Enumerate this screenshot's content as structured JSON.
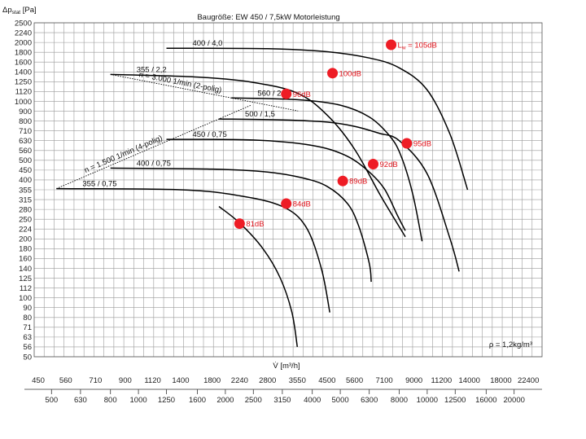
{
  "chart_data": {
    "type": "line",
    "title": "Baugröße: EW 450 / 7,5kW Motorleistung",
    "ylabel": "Δp",
    "ylabel_sub": "stat",
    "ylabel_unit": " [Pa]",
    "xlabel": "V̇ [m³/h]",
    "density_note": "ρ = 1,2kg/m³",
    "y_ticks": [
      "2500",
      "2240",
      "2000",
      "1800",
      "1600",
      "1400",
      "1250",
      "1120",
      "1000",
      "900",
      "800",
      "710",
      "630",
      "560",
      "500",
      "450",
      "400",
      "355",
      "315",
      "280",
      "250",
      "224",
      "200",
      "180",
      "160",
      "140",
      "125",
      "112",
      "100",
      "90",
      "80",
      "71",
      "63",
      "56",
      "50"
    ],
    "x_scale_top": [
      "450",
      "560",
      "710",
      "900",
      "1120",
      "1400",
      "1800",
      "2240",
      "2800",
      "3550",
      "4500",
      "5600",
      "7100",
      "9000",
      "11200",
      "14000",
      "18000",
      "22400"
    ],
    "x_scale_bottom": [
      "500",
      "630",
      "800",
      "1000",
      "1250",
      "1600",
      "2000",
      "2500",
      "3150",
      "4000",
      "5000",
      "6300",
      "8000",
      "10000",
      "12500",
      "16000",
      "20000"
    ],
    "speed_lines": [
      {
        "label": "n = 3.000 1/min (2-polig)"
      },
      {
        "label": "n = 1.500 1/min (4-polig)"
      }
    ],
    "series": [
      {
        "name": "400 / 4,0",
        "x": [
          1250,
          2800,
          4500,
          6300,
          8000,
          10000,
          12000,
          13800
        ],
        "y": [
          1880,
          1870,
          1810,
          1680,
          1480,
          1140,
          680,
          355
        ]
      },
      {
        "name": "355 / 2,2",
        "x": [
          800,
          1600,
          2500,
          3550,
          4500,
          5600,
          6900,
          8400
        ],
        "y": [
          1360,
          1320,
          1240,
          1100,
          860,
          570,
          330,
          205
        ]
      },
      {
        "name": "560 / 2,2",
        "x": [
          2100,
          3550,
          5000,
          6300,
          7400,
          8100,
          8900,
          9600
        ],
        "y": [
          1040,
          1020,
          960,
          840,
          670,
          530,
          340,
          195
        ]
      },
      {
        "name": "500 / 1,5",
        "x": [
          1900,
          3150,
          4500,
          5600,
          6800,
          8000,
          10000,
          12000,
          12900
        ],
        "y": [
          820,
          810,
          790,
          750,
          690,
          630,
          430,
          200,
          135
        ]
      },
      {
        "name": "450 / 0,75",
        "x": [
          1250,
          2500,
          4000,
          5200,
          6200,
          7100,
          7900,
          8400
        ],
        "y": [
          640,
          635,
          595,
          530,
          450,
          360,
          260,
          220
        ]
      },
      {
        "name": "400 / 0,75",
        "x": [
          800,
          1800,
          2800,
          3700,
          4500,
          5300,
          5800,
          6300,
          6400
        ],
        "y": [
          460,
          455,
          440,
          410,
          370,
          300,
          230,
          150,
          120
        ]
      },
      {
        "name": "355 / 0,75",
        "x": [
          520,
          1400,
          2240,
          3150,
          3800,
          4300,
          4600
        ],
        "y": [
          360,
          355,
          330,
          290,
          230,
          140,
          85
        ]
      },
      {
        "name": "81dB curve",
        "x": [
          1900,
          2240,
          2700,
          3100,
          3400,
          3550
        ],
        "y": [
          290,
          240,
          180,
          125,
          85,
          56
        ]
      }
    ],
    "operating_points": [
      {
        "label": "L",
        "sub": "w",
        "value_text": " = 105dB",
        "x": 7500,
        "y": 1950
      },
      {
        "label": "100dB",
        "x": 4700,
        "y": 1380
      },
      {
        "label": "96dB",
        "x": 3250,
        "y": 1090
      },
      {
        "label": "95dB",
        "x": 8500,
        "y": 610
      },
      {
        "label": "92dB",
        "x": 6500,
        "y": 480
      },
      {
        "label": "89dB",
        "x": 5100,
        "y": 395
      },
      {
        "label": "84dB",
        "x": 3250,
        "y": 300
      },
      {
        "label": "81dB",
        "x": 2240,
        "y": 238
      }
    ]
  }
}
